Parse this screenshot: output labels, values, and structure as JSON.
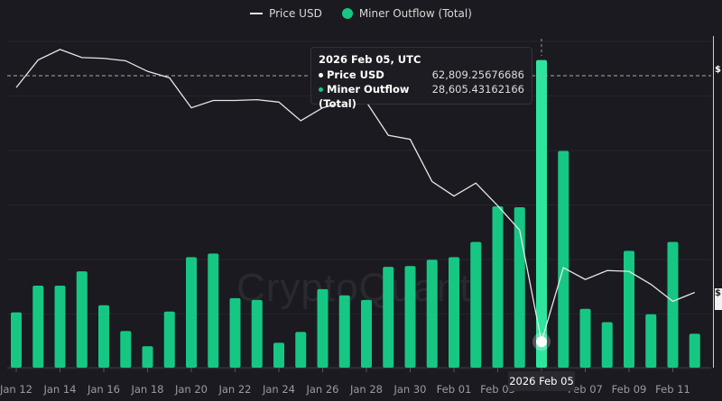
{
  "legend": {
    "price_label": "Price USD",
    "outflow_label": "Miner Outflow (Total)",
    "price_icon": "line-icon",
    "outflow_icon": "dot-icon"
  },
  "tooltip": {
    "title": "2026 Feb 05, UTC",
    "price_label": "Price USD",
    "price_value": "62,809.25676686",
    "outflow_label": "Miner Outflow (Total)",
    "outflow_value": "28,605.43162166"
  },
  "hover_date_label": "2026 Feb 05",
  "watermark": "CryptoQuant",
  "right_axis_tags": [
    "$",
    "$"
  ],
  "colors": {
    "outflow": "#16c784",
    "outflow_highlight": "#2ee59d",
    "price": "#e6e6e6",
    "background": "#1b1a20"
  },
  "chart_data": {
    "type": "bar+line",
    "title": "",
    "legend_position": "top-center",
    "grid": true,
    "x": [
      "Jan 12",
      "Jan 13",
      "Jan 14",
      "Jan 15",
      "Jan 16",
      "Jan 17",
      "Jan 18",
      "Jan 19",
      "Jan 20",
      "Jan 21",
      "Jan 22",
      "Jan 23",
      "Jan 24",
      "Jan 25",
      "Jan 26",
      "Jan 27",
      "Jan 28",
      "Jan 29",
      "Jan 30",
      "Jan 31",
      "Feb 01",
      "Feb 02",
      "Feb 03",
      "Feb 04",
      "Feb 05",
      "Feb 06",
      "Feb 07",
      "Feb 08",
      "Feb 09",
      "Feb 10",
      "Feb 11",
      "Feb 12"
    ],
    "x_tick_labels": [
      "Jan 12",
      "Jan 14",
      "Jan 16",
      "Jan 18",
      "Jan 20",
      "Jan 22",
      "Jan 24",
      "Jan 26",
      "Jan 28",
      "Jan 30",
      "Feb 01",
      "Feb 03",
      "Feb 05",
      "Feb 07",
      "Feb 09",
      "Feb 11"
    ],
    "highlight_index": 24,
    "series": [
      {
        "name": "Miner Outflow (Total)",
        "type": "bar",
        "axis": "left",
        "values": [
          5140,
          7630,
          7630,
          8960,
          5800,
          3400,
          1990,
          5220,
          10280,
          10610,
          6460,
          6300,
          2320,
          3320,
          7300,
          6720,
          6300,
          9370,
          9450,
          10030,
          10280,
          11690,
          15000,
          14920,
          28605,
          20150,
          5470,
          4230,
          10860,
          4970,
          11690,
          3150
        ]
      },
      {
        "name": "Price USD",
        "type": "line",
        "axis": "right",
        "values": [
          94200,
          97600,
          98900,
          97900,
          97800,
          97500,
          96200,
          95400,
          91700,
          92600,
          92600,
          92700,
          92400,
          90100,
          91700,
          92400,
          92400,
          88300,
          87800,
          82600,
          80800,
          82400,
          79600,
          76600,
          62809,
          71950,
          70500,
          71600,
          71500,
          69900,
          67800,
          68900
        ]
      }
    ],
    "outflow_range": [
      0,
      30000
    ],
    "price_range": [
      61500,
      100000
    ]
  }
}
